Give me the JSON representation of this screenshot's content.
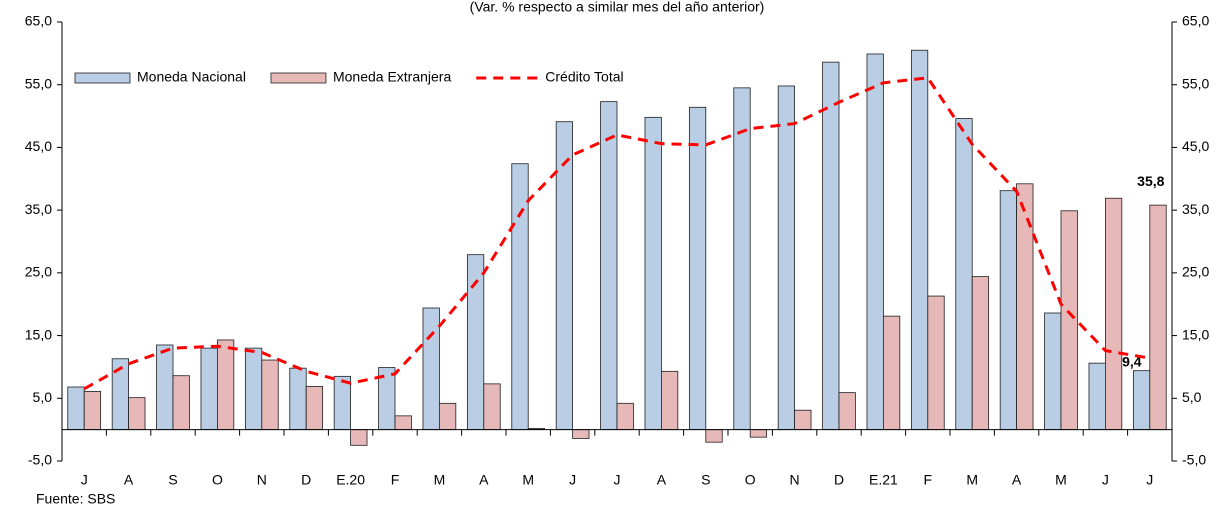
{
  "chart_data": {
    "type": "bar",
    "title": "(Var. % respecto a similar mes del año anterior)",
    "source": "Fuente: SBS",
    "categories": [
      "J",
      "A",
      "S",
      "O",
      "N",
      "D",
      "E.20",
      "F",
      "M",
      "A",
      "M",
      "J",
      "J",
      "A",
      "S",
      "O",
      "N",
      "D",
      "E.21",
      "F",
      "M",
      "A",
      "M",
      "J",
      "J"
    ],
    "series": [
      {
        "name": "Moneda Nacional",
        "color": "#b9cde5",
        "kind": "bar",
        "values": [
          6.8,
          11.3,
          13.5,
          13.0,
          13.0,
          9.8,
          8.5,
          9.9,
          19.4,
          27.9,
          42.4,
          49.1,
          52.3,
          49.8,
          51.4,
          54.5,
          54.8,
          58.6,
          59.9,
          60.5,
          49.6,
          38.1,
          18.6,
          10.6,
          9.4
        ],
        "value_labels": [
          null,
          null,
          null,
          null,
          null,
          null,
          null,
          null,
          null,
          null,
          null,
          null,
          null,
          null,
          null,
          null,
          null,
          null,
          null,
          null,
          null,
          null,
          null,
          null,
          "9,4"
        ]
      },
      {
        "name": "Moneda Extranjera",
        "color": "#e6b9b8",
        "kind": "bar",
        "values": [
          6.1,
          5.1,
          8.6,
          14.3,
          11.1,
          6.9,
          -2.5,
          2.2,
          4.2,
          7.3,
          0.2,
          -1.4,
          4.2,
          9.3,
          -2.0,
          -1.2,
          3.1,
          5.9,
          18.1,
          21.3,
          24.4,
          39.2,
          34.9,
          36.9,
          35.8
        ],
        "value_labels": [
          null,
          null,
          null,
          null,
          null,
          null,
          null,
          null,
          null,
          null,
          null,
          null,
          null,
          null,
          null,
          null,
          null,
          null,
          null,
          null,
          null,
          null,
          null,
          null,
          "35,8"
        ]
      },
      {
        "name": "Crédito Total",
        "color": "#ff0000",
        "kind": "line",
        "values": [
          6.5,
          10.5,
          13.0,
          13.3,
          12.3,
          9.3,
          7.4,
          8.9,
          16.5,
          25.0,
          36.5,
          43.8,
          47.0,
          45.6,
          45.4,
          48.0,
          48.8,
          52.2,
          55.3,
          56.1,
          45.5,
          38.0,
          20.0,
          12.6,
          11.4
        ]
      }
    ],
    "ylim": [
      -5,
      65
    ],
    "yticks": [
      {
        "value": -5,
        "label": "-5,0"
      },
      {
        "value": 5,
        "label": "5,0"
      },
      {
        "value": 15,
        "label": "15,0"
      },
      {
        "value": 25,
        "label": "25,0"
      },
      {
        "value": 35,
        "label": "35,0"
      },
      {
        "value": 45,
        "label": "45,0"
      },
      {
        "value": 55,
        "label": "55,0"
      },
      {
        "value": 65,
        "label": "65,0"
      }
    ],
    "y2lim": [
      -5,
      65
    ],
    "y2ticks": [
      {
        "value": -5,
        "label": "-5,0"
      },
      {
        "value": 5,
        "label": "5,0"
      },
      {
        "value": 15,
        "label": "15,0"
      },
      {
        "value": 25,
        "label": "25,0"
      },
      {
        "value": 35,
        "label": "35,0"
      },
      {
        "value": 45,
        "label": "45,0"
      },
      {
        "value": 55,
        "label": "55,0"
      },
      {
        "value": 65,
        "label": "65,0"
      }
    ],
    "legend": "top-left",
    "grid": false
  }
}
